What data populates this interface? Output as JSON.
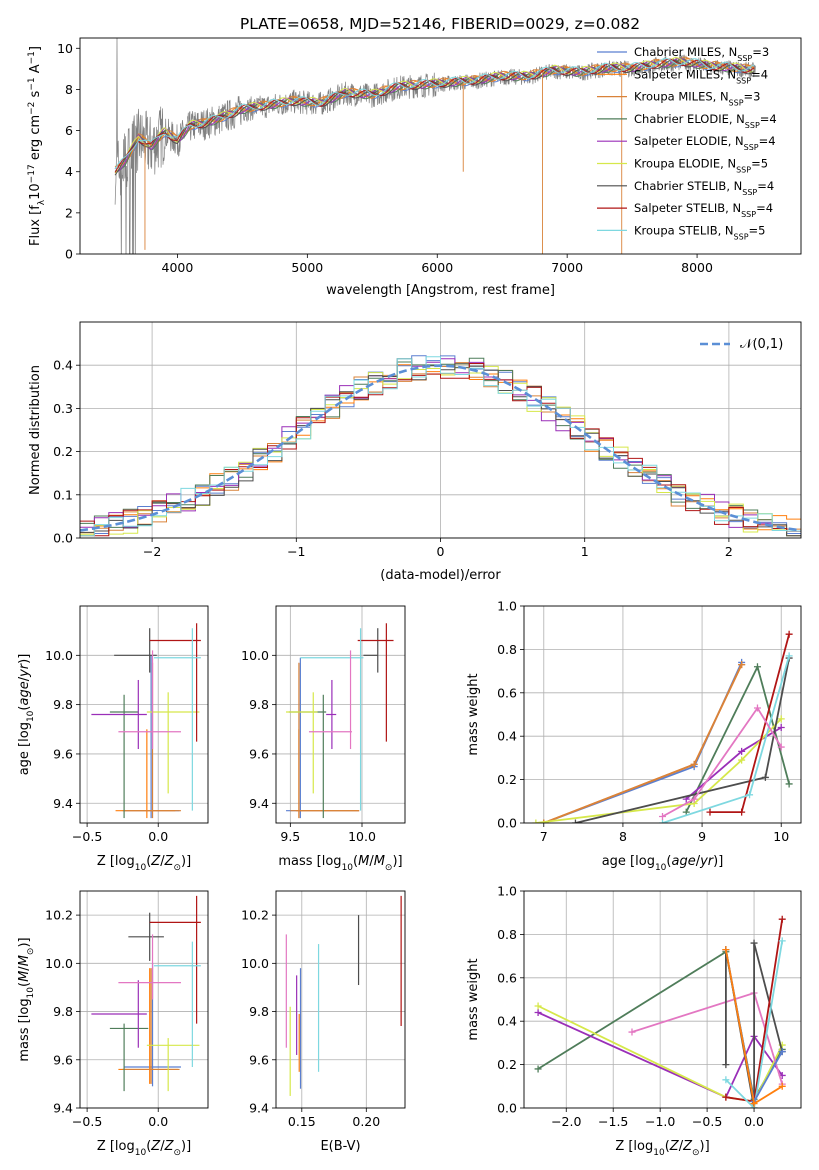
{
  "title": "PLATE=0658, MJD=52146, FIBERID=0029, z=0.082",
  "legend_entries": [
    {
      "name": "Chabrier MILES, N",
      "sub": "SSP",
      "tail": "=3",
      "color": "#5b7fd0"
    },
    {
      "name": "Salpeter MILES, N",
      "sub": "SSP",
      "tail": "=4",
      "color": "#ff7f0e"
    },
    {
      "name": "Kroupa MILES, N",
      "sub": "SSP",
      "tail": "=3",
      "color": "#d9833a"
    },
    {
      "name": "Chabrier ELODIE, N",
      "sub": "SSP",
      "tail": "=4",
      "color": "#4f7d5a"
    },
    {
      "name": "Salpeter ELODIE, N",
      "sub": "SSP",
      "tail": "=4",
      "color": "#9a2fb8"
    },
    {
      "name": "Kroupa ELODIE, N",
      "sub": "SSP",
      "tail": "=5",
      "color": "#d6e84a"
    },
    {
      "name": "Chabrier STELIB, N",
      "sub": "SSP",
      "tail": "=4",
      "color": "#4d4d4d"
    },
    {
      "name": "Salpeter STELIB, N",
      "sub": "SSP",
      "tail": "=4",
      "color": "#b01515"
    },
    {
      "name": "Kroupa STELIB, N",
      "sub": "SSP",
      "tail": "=5",
      "color": "#7ed8e0"
    }
  ],
  "colors": {
    "data": "#808080",
    "pink": "#e377c2",
    "grid": "#b0b0b0",
    "gauss": "#5b8fd6"
  },
  "chart_data": [
    {
      "id": "spectrum",
      "type": "line",
      "xlabel": "wavelength [Angstrom, rest frame]",
      "ylabel": "Flux [f_λ 10^-17 erg cm^-2 s^-1 A^-1]",
      "xlim": [
        3250,
        8800
      ],
      "ylim": [
        0,
        10.5
      ],
      "xticks": [
        4000,
        5000,
        6000,
        7000,
        8000
      ],
      "yticks": [
        0,
        2,
        4,
        6,
        8,
        10
      ],
      "grid": false,
      "legend": "right",
      "data_envelope": {
        "x": [
          3520,
          3600,
          3700,
          3800,
          3900,
          4000,
          4100,
          4200,
          4300,
          4500,
          4700,
          4900,
          5100,
          5300,
          5500,
          5700,
          5900,
          6100,
          6300,
          6500,
          6700,
          6900,
          7100,
          7300,
          7500,
          7700,
          7900,
          8100,
          8300,
          8450
        ],
        "y": [
          4.0,
          4.5,
          5.6,
          5.2,
          5.9,
          5.5,
          6.2,
          6.3,
          6.5,
          7.0,
          7.2,
          7.4,
          7.3,
          7.8,
          7.7,
          8.1,
          8.2,
          8.3,
          8.4,
          8.6,
          8.6,
          8.9,
          8.8,
          9.0,
          9.0,
          9.2,
          9.3,
          9.1,
          9.0,
          8.9
        ]
      }
    },
    {
      "id": "residuals",
      "type": "line",
      "xlabel": "(data-model)/error",
      "ylabel": "Normed distribution",
      "xlim": [
        -2.5,
        2.5
      ],
      "ylim": [
        0,
        0.5
      ],
      "xticks": [
        -2,
        -1,
        0,
        1,
        2
      ],
      "yticks": [
        0.0,
        0.1,
        0.2,
        0.3,
        0.4
      ],
      "grid": true,
      "legend": "top-right",
      "series": [
        {
          "name": "𝒩(0,1)",
          "style": "dashed"
        }
      ]
    },
    {
      "id": "age_vs_Z",
      "type": "scatter",
      "xlabel": "Z [log10(Z/Z⊙)]",
      "ylabel": "age [log10(age/yr)]",
      "xlim": [
        -0.55,
        0.35
      ],
      "ylim": [
        9.32,
        10.2
      ],
      "xticks": [
        -0.5,
        0.0
      ],
      "yticks": [
        9.4,
        9.6,
        9.8,
        10.0
      ],
      "grid": true,
      "points": [
        {
          "c": "#5b7fd0",
          "x": -0.05,
          "xe": [
            0.2,
            0.2
          ],
          "y": 9.37,
          "ye": [
            0.03,
            0.63
          ]
        },
        {
          "c": "#ff7f0e",
          "x": -0.08,
          "xe": [
            0.22,
            0.2
          ],
          "y": 9.37,
          "ye": [
            0.03,
            0.33
          ]
        },
        {
          "c": "#d9833a",
          "x": -0.04,
          "xe": [
            0.2,
            0.2
          ],
          "y": 9.37,
          "ye": [
            0.03,
            0.6
          ]
        },
        {
          "c": "#4f7d5a",
          "x": -0.24,
          "xe": [
            0.1,
            0.1
          ],
          "y": 9.77,
          "ye": [
            0.43,
            0.07
          ]
        },
        {
          "c": "#9a2fb8",
          "x": -0.14,
          "xe": [
            0.33,
            0.06
          ],
          "y": 9.76,
          "ye": [
            0.14,
            0.14
          ]
        },
        {
          "c": "#d6e84a",
          "x": 0.07,
          "xe": [
            0.15,
            0.22
          ],
          "y": 9.77,
          "ye": [
            0.33,
            0.08
          ]
        },
        {
          "c": "#4d4d4d",
          "x": -0.06,
          "xe": [
            0.25,
            0.05
          ],
          "y": 10.0,
          "ye": [
            0.07,
            0.11
          ]
        },
        {
          "c": "#b01515",
          "x": 0.27,
          "xe": [
            0.33,
            0.03
          ],
          "y": 10.06,
          "ye": [
            0.41,
            0.07
          ]
        },
        {
          "c": "#7ed8e0",
          "x": 0.24,
          "xe": [
            0.27,
            0.06
          ],
          "y": 9.99,
          "ye": [
            0.62,
            0.12
          ]
        },
        {
          "c": "#e377c2",
          "x": -0.04,
          "xe": [
            0.24,
            0.2
          ],
          "y": 9.69,
          "ye": [
            0.07,
            0.33
          ]
        }
      ]
    },
    {
      "id": "age_vs_mass",
      "type": "scatter",
      "xlabel": "mass [log10(M/M⊙)]",
      "ylabel": "",
      "xlim": [
        9.4,
        10.3
      ],
      "ylim": [
        9.32,
        10.2
      ],
      "xticks": [
        9.5,
        10.0
      ],
      "yticks": [
        9.4,
        9.6,
        9.8,
        10.0
      ],
      "grid": true,
      "points": [
        {
          "c": "#5b7fd0",
          "x": 9.57,
          "xe": [
            0.1,
            0.41
          ],
          "y": 9.37,
          "ye": [
            0.03,
            0.62
          ]
        },
        {
          "c": "#ff7f0e",
          "x": 9.56,
          "xe": [
            0.02,
            0.42
          ],
          "y": 9.37,
          "ye": [
            0.03,
            0.33
          ]
        },
        {
          "c": "#d9833a",
          "x": 9.56,
          "xe": [
            0.06,
            0.42
          ],
          "y": 9.37,
          "ye": [
            0.03,
            0.6
          ]
        },
        {
          "c": "#4f7d5a",
          "x": 9.73,
          "xe": [
            0.24,
            0.02
          ],
          "y": 9.77,
          "ye": [
            0.43,
            0.07
          ]
        },
        {
          "c": "#9a2fb8",
          "x": 9.79,
          "xe": [
            0.04,
            0.03
          ],
          "y": 9.76,
          "ye": [
            0.14,
            0.14
          ]
        },
        {
          "c": "#d6e84a",
          "x": 9.66,
          "xe": [
            0.19,
            0.03
          ],
          "y": 9.77,
          "ye": [
            0.33,
            0.08
          ]
        },
        {
          "c": "#4d4d4d",
          "x": 10.11,
          "xe": [
            0.1,
            0.0
          ],
          "y": 10.0,
          "ye": [
            0.07,
            0.11
          ]
        },
        {
          "c": "#b01515",
          "x": 10.17,
          "xe": [
            0.2,
            0.05
          ],
          "y": 10.06,
          "ye": [
            0.41,
            0.07
          ]
        },
        {
          "c": "#7ed8e0",
          "x": 9.99,
          "xe": [
            0.42,
            0.02
          ],
          "y": 9.99,
          "ye": [
            0.62,
            0.12
          ]
        },
        {
          "c": "#e377c2",
          "x": 9.92,
          "xe": [
            0.29,
            0.01
          ],
          "y": 9.69,
          "ye": [
            0.07,
            0.33
          ]
        }
      ]
    },
    {
      "id": "weight_vs_age",
      "type": "line",
      "xlabel": "age [log10(age/yr)]",
      "ylabel": "mass weight",
      "xlim": [
        6.75,
        10.25
      ],
      "ylim": [
        0,
        1.0
      ],
      "xticks": [
        7,
        8,
        9,
        10
      ],
      "yticks": [
        0.0,
        0.2,
        0.4,
        0.6,
        0.8,
        1.0
      ],
      "grid": true,
      "series": [
        {
          "c": "#5b7fd0",
          "x": [
            7.0,
            8.9,
            9.5
          ],
          "y": [
            0.0,
            0.26,
            0.74
          ]
        },
        {
          "c": "#ff7f0e",
          "x": [
            7.0,
            8.9,
            9.5
          ],
          "y": [
            0.0,
            0.27,
            0.73
          ]
        },
        {
          "c": "#d9833a",
          "x": [
            7.0,
            8.9,
            9.5
          ],
          "y": [
            0.0,
            0.27,
            0.73
          ]
        },
        {
          "c": "#4f7d5a",
          "x": [
            8.8,
            9.7,
            10.1
          ],
          "y": [
            0.05,
            0.72,
            0.18
          ]
        },
        {
          "c": "#9a2fb8",
          "x": [
            8.8,
            9.5,
            10.0
          ],
          "y": [
            0.11,
            0.33,
            0.44
          ]
        },
        {
          "c": "#d6e84a",
          "x": [
            6.9,
            8.9,
            9.5,
            10.0
          ],
          "y": [
            0.0,
            0.09,
            0.29,
            0.48
          ]
        },
        {
          "c": "#4d4d4d",
          "x": [
            7.4,
            9.8,
            10.1
          ],
          "y": [
            0.0,
            0.21,
            0.76
          ]
        },
        {
          "c": "#b01515",
          "x": [
            9.1,
            9.5,
            10.1
          ],
          "y": [
            0.05,
            0.05,
            0.87
          ]
        },
        {
          "c": "#7ed8e0",
          "x": [
            8.5,
            9.6,
            10.1
          ],
          "y": [
            0.0,
            0.13,
            0.77
          ]
        },
        {
          "c": "#e377c2",
          "x": [
            8.5,
            8.9,
            9.7,
            10.0
          ],
          "y": [
            0.03,
            0.11,
            0.53,
            0.35
          ]
        }
      ]
    },
    {
      "id": "mass_vs_Z",
      "type": "scatter",
      "xlabel": "Z [log10(Z/Z⊙)]",
      "ylabel": "mass [log10(M/M⊙)]",
      "xlim": [
        -0.55,
        0.35
      ],
      "ylim": [
        9.4,
        10.3
      ],
      "xticks": [
        -0.5,
        0.0
      ],
      "yticks": [
        9.4,
        9.6,
        9.8,
        10.0,
        10.2
      ],
      "grid": true,
      "points": [
        {
          "c": "#5b7fd0",
          "x": -0.04,
          "xe": [
            0.2,
            0.2
          ],
          "y": 9.57,
          "ye": [
            0.08,
            0.43
          ]
        },
        {
          "c": "#ff7f0e",
          "x": -0.06,
          "xe": [
            0.22,
            0.2
          ],
          "y": 9.56,
          "ye": [
            0.06,
            0.42
          ]
        },
        {
          "c": "#d9833a",
          "x": -0.05,
          "xe": [
            0.2,
            0.2
          ],
          "y": 9.56,
          "ye": [
            0.06,
            0.42
          ]
        },
        {
          "c": "#4f7d5a",
          "x": -0.24,
          "xe": [
            0.1,
            0.17
          ],
          "y": 9.73,
          "ye": [
            0.26,
            0.02
          ]
        },
        {
          "c": "#9a2fb8",
          "x": -0.14,
          "xe": [
            0.33,
            0.06
          ],
          "y": 9.79,
          "ye": [
            0.14,
            0.14
          ]
        },
        {
          "c": "#d6e84a",
          "x": 0.07,
          "xe": [
            0.15,
            0.22
          ],
          "y": 9.66,
          "ye": [
            0.19,
            0.03
          ]
        },
        {
          "c": "#4d4d4d",
          "x": -0.06,
          "xe": [
            0.15,
            0.1
          ],
          "y": 10.11,
          "ye": [
            0.1,
            0.1
          ]
        },
        {
          "c": "#b01515",
          "x": 0.27,
          "xe": [
            0.33,
            0.03
          ],
          "y": 10.17,
          "ye": [
            0.42,
            0.11
          ]
        },
        {
          "c": "#7ed8e0",
          "x": 0.24,
          "xe": [
            0.27,
            0.06
          ],
          "y": 9.99,
          "ye": [
            0.42,
            0.1
          ]
        },
        {
          "c": "#e377c2",
          "x": -0.04,
          "xe": [
            0.24,
            0.2
          ],
          "y": 9.92,
          "ye": [
            0.07,
            0.2
          ]
        }
      ]
    },
    {
      "id": "mass_vs_ebv",
      "type": "scatter",
      "xlabel": "E(B-V)",
      "ylabel": "",
      "xlim": [
        0.13,
        0.23
      ],
      "ylim": [
        9.4,
        10.3
      ],
      "xticks": [
        0.15,
        0.2
      ],
      "yticks": [
        9.4,
        9.6,
        9.8,
        10.0,
        10.2
      ],
      "grid": true,
      "segments": [
        {
          "c": "#e377c2",
          "x": 0.138,
          "y": [
            9.65,
            10.12
          ]
        },
        {
          "c": "#d6e84a",
          "x": 0.141,
          "y": [
            9.45,
            9.82
          ]
        },
        {
          "c": "#9a2fb8",
          "x": 0.146,
          "y": [
            9.62,
            9.95
          ]
        },
        {
          "c": "#ff7f0e",
          "x": 0.148,
          "y": [
            9.55,
            9.79
          ]
        },
        {
          "c": "#5b7fd0",
          "x": 0.149,
          "y": [
            9.48,
            9.98
          ]
        },
        {
          "c": "#7ed8e0",
          "x": 0.163,
          "y": [
            9.55,
            10.08
          ]
        },
        {
          "c": "#4d4d4d",
          "x": 0.194,
          "y": [
            9.91,
            10.2
          ]
        },
        {
          "c": "#b01515",
          "x": 0.227,
          "y": [
            9.74,
            10.28
          ]
        }
      ]
    },
    {
      "id": "weight_vs_Z",
      "type": "line",
      "xlabel": "Z [log10(Z/Z⊙)]",
      "ylabel": "mass weight",
      "xlim": [
        -2.45,
        0.5
      ],
      "ylim": [
        0,
        1.0
      ],
      "xticks": [
        -2.0,
        -1.5,
        -1.0,
        -0.5,
        0.0
      ],
      "yticks": [
        0.0,
        0.2,
        0.4,
        0.6,
        0.8,
        1.0
      ],
      "grid": true,
      "series": [
        {
          "c": "#4f7d5a",
          "x": [
            -2.3,
            -0.3,
            0.0,
            0.3
          ],
          "y": [
            0.18,
            0.72,
            0.04,
            0.27
          ]
        },
        {
          "c": "#9a2fb8",
          "x": [
            -2.3,
            -0.3,
            0.0,
            0.3
          ],
          "y": [
            0.44,
            0.05,
            0.33,
            0.15
          ]
        },
        {
          "c": "#d6e84a",
          "x": [
            -2.3,
            -0.3,
            0.0,
            0.3
          ],
          "y": [
            0.47,
            0.05,
            0.03,
            0.29
          ]
        },
        {
          "c": "#e377c2",
          "x": [
            -1.3,
            0.0,
            0.3
          ],
          "y": [
            0.35,
            0.53,
            0.11
          ]
        },
        {
          "c": "#4d4d4d",
          "x": [
            -0.3,
            -0.3,
            0.0,
            0.0,
            0.3
          ],
          "y": [
            0.2,
            0.73,
            0.0,
            0.76,
            0.26
          ]
        },
        {
          "c": "#b01515",
          "x": [
            -0.3,
            0.0,
            0.3
          ],
          "y": [
            0.05,
            0.03,
            0.87
          ]
        },
        {
          "c": "#7ed8e0",
          "x": [
            -0.3,
            0.0,
            0.3
          ],
          "y": [
            0.13,
            0.0,
            0.77
          ]
        },
        {
          "c": "#5b7fd0",
          "x": [
            -0.3,
            0.0,
            0.3
          ],
          "y": [
            0.73,
            0.03,
            0.26
          ]
        },
        {
          "c": "#ff7f0e",
          "x": [
            -0.3,
            0.0,
            0.3
          ],
          "y": [
            0.73,
            0.02,
            0.1
          ]
        }
      ]
    }
  ]
}
